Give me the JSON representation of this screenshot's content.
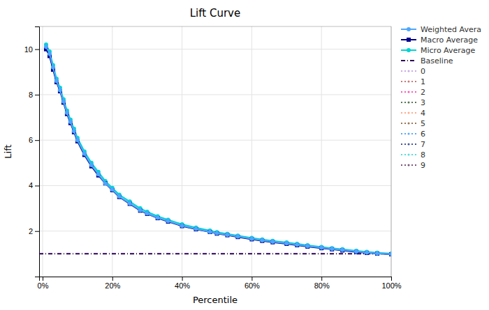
{
  "chart_data": {
    "type": "line",
    "title": "Lift Curve",
    "x_label": "Percentile",
    "y_label": "Lift",
    "x": [
      0.01,
      0.02,
      0.03,
      0.04,
      0.05,
      0.06,
      0.07,
      0.08,
      0.09,
      0.1,
      0.12,
      0.14,
      0.16,
      0.18,
      0.2,
      0.22,
      0.25,
      0.28,
      0.3,
      0.33,
      0.36,
      0.4,
      0.44,
      0.48,
      0.5,
      0.53,
      0.56,
      0.6,
      0.63,
      0.66,
      0.7,
      0.73,
      0.76,
      0.8,
      0.83,
      0.86,
      0.9,
      0.93,
      0.96,
      1.0
    ],
    "series": [
      {
        "name": "Weighted Avera",
        "color": "#4da6ff",
        "marker": "circle",
        "line_style": "solid",
        "values": [
          10.1,
          9.8,
          9.2,
          8.6,
          8.2,
          7.7,
          7.2,
          6.8,
          6.4,
          6.0,
          5.4,
          4.9,
          4.5,
          4.1,
          3.82,
          3.52,
          3.22,
          2.92,
          2.78,
          2.59,
          2.44,
          2.24,
          2.1,
          1.97,
          1.91,
          1.84,
          1.76,
          1.66,
          1.59,
          1.53,
          1.46,
          1.4,
          1.34,
          1.27,
          1.22,
          1.17,
          1.1,
          1.06,
          1.02,
          0.99
        ]
      },
      {
        "name": "Macro Average",
        "color": "#00008b",
        "marker": "square",
        "line_style": "solid",
        "values": [
          10.0,
          9.7,
          9.1,
          8.55,
          8.15,
          7.65,
          7.15,
          6.75,
          6.35,
          5.95,
          5.35,
          4.85,
          4.45,
          4.1,
          3.8,
          3.5,
          3.2,
          2.9,
          2.76,
          2.57,
          2.42,
          2.22,
          2.08,
          1.96,
          1.89,
          1.82,
          1.74,
          1.64,
          1.57,
          1.51,
          1.44,
          1.38,
          1.32,
          1.25,
          1.2,
          1.15,
          1.08,
          1.04,
          1.01,
          0.98
        ]
      },
      {
        "name": "Micro Average",
        "color": "#00d4d4",
        "marker": "circle",
        "line_style": "solid",
        "values": [
          10.2,
          9.9,
          9.3,
          8.7,
          8.3,
          7.8,
          7.3,
          6.9,
          6.5,
          6.1,
          5.5,
          5.0,
          4.6,
          4.2,
          3.9,
          3.6,
          3.3,
          3.0,
          2.85,
          2.65,
          2.5,
          2.3,
          2.15,
          2.02,
          1.95,
          1.88,
          1.8,
          1.7,
          1.63,
          1.57,
          1.5,
          1.44,
          1.38,
          1.3,
          1.25,
          1.2,
          1.13,
          1.09,
          1.05,
          1.01
        ]
      },
      {
        "name": "Baseline",
        "type": "hline",
        "y": 1.0,
        "color": "#2d0057",
        "line_style": "dashdot"
      },
      {
        "name": "0",
        "color": "#c8a8e8",
        "marker": "point",
        "line_style": "dotted"
      },
      {
        "name": "1",
        "color": "#c87878",
        "marker": "point",
        "line_style": "dotted"
      },
      {
        "name": "2",
        "color": "#ff55bb",
        "marker": "point",
        "line_style": "dotted"
      },
      {
        "name": "3",
        "color": "#557755",
        "marker": "point",
        "line_style": "dotted"
      },
      {
        "name": "4",
        "color": "#ffaa88",
        "marker": "point",
        "line_style": "dotted"
      },
      {
        "name": "5",
        "color": "#997755",
        "marker": "point",
        "line_style": "dotted"
      },
      {
        "name": "6",
        "color": "#55aaff",
        "marker": "point",
        "line_style": "dotted"
      },
      {
        "name": "7",
        "color": "#445599",
        "marker": "point",
        "line_style": "dotted"
      },
      {
        "name": "8",
        "color": "#55dddd",
        "marker": "point",
        "line_style": "dotted"
      },
      {
        "name": "9",
        "color": "#775577",
        "marker": "point",
        "line_style": "dotted"
      }
    ],
    "xlim": [
      -0.01,
      1.0
    ],
    "xticks": [
      {
        "value": 0,
        "label": "0%"
      },
      {
        "value": 0.2,
        "label": "20%"
      },
      {
        "value": 0.4,
        "label": "40%"
      },
      {
        "value": 0.6,
        "label": "60%"
      },
      {
        "value": 0.8,
        "label": "80%"
      },
      {
        "value": 1.0,
        "label": "100%"
      }
    ],
    "ylim": [
      0,
      11
    ],
    "yticks": [
      2,
      4,
      6,
      8,
      10
    ],
    "grid": true,
    "legend": "right"
  }
}
